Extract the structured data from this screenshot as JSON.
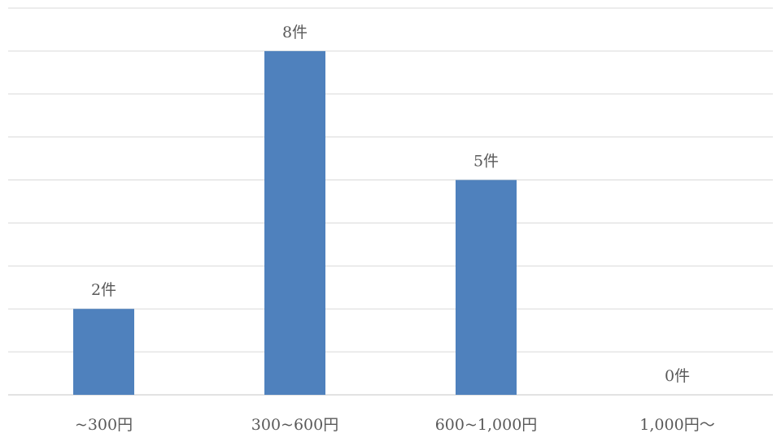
{
  "chart_data": {
    "type": "bar",
    "categories": [
      "~300円",
      "300~600円",
      "600~1,000円",
      "1,000円～"
    ],
    "values": [
      2,
      8,
      5,
      0
    ],
    "data_labels": [
      "2件",
      "8件",
      "5件",
      "0件"
    ],
    "title": "",
    "xlabel": "",
    "ylabel": "",
    "ylim": [
      0,
      9
    ],
    "grid": true,
    "legend": "none",
    "bar_color": "#4f81bd",
    "grid_color": "#d9d9d9"
  }
}
